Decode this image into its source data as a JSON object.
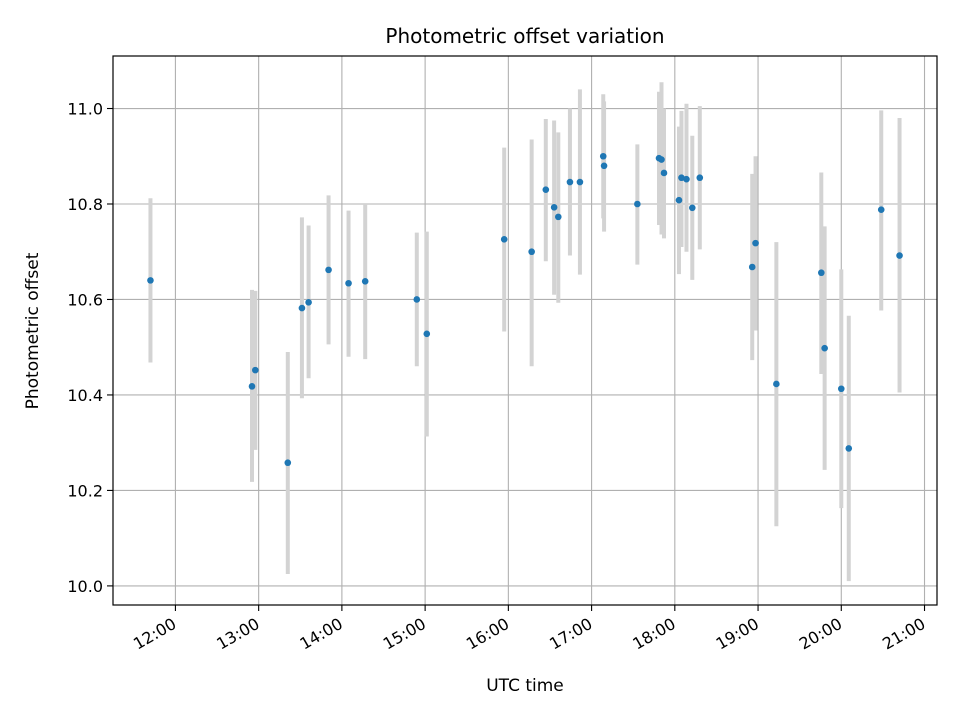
{
  "chart_data": {
    "type": "scatter",
    "title": "Photometric offset variation",
    "xlabel": "UTC time",
    "ylabel": "Photometric offset",
    "x_unit": "hour of day (UTC)",
    "xlim": [
      11.25,
      21.15
    ],
    "ylim": [
      9.96,
      11.11
    ],
    "xticks": [
      12,
      13,
      14,
      15,
      16,
      17,
      18,
      19,
      20,
      21
    ],
    "xtick_labels": [
      "12:00",
      "13:00",
      "14:00",
      "15:00",
      "16:00",
      "17:00",
      "18:00",
      "19:00",
      "20:00",
      "21:00"
    ],
    "yticks": [
      10.0,
      10.2,
      10.4,
      10.6,
      10.8,
      11.0
    ],
    "ytick_labels": [
      "10.0",
      "10.2",
      "10.4",
      "10.6",
      "10.8",
      "11.0"
    ],
    "grid": true,
    "colors": {
      "marker": "#1f77b4",
      "errorbar": "#d3d3d3",
      "grid": "#b0b0b0"
    },
    "points": [
      {
        "x": 11.7,
        "y": 10.64,
        "lo": 10.468,
        "hi": 10.812
      },
      {
        "x": 12.92,
        "y": 10.418,
        "lo": 10.218,
        "hi": 10.62
      },
      {
        "x": 12.96,
        "y": 10.452,
        "lo": 10.285,
        "hi": 10.618
      },
      {
        "x": 13.35,
        "y": 10.258,
        "lo": 10.025,
        "hi": 10.49
      },
      {
        "x": 13.52,
        "y": 10.582,
        "lo": 10.393,
        "hi": 10.772
      },
      {
        "x": 13.6,
        "y": 10.594,
        "lo": 10.435,
        "hi": 10.755
      },
      {
        "x": 13.84,
        "y": 10.662,
        "lo": 10.506,
        "hi": 10.818
      },
      {
        "x": 14.08,
        "y": 10.634,
        "lo": 10.48,
        "hi": 10.786
      },
      {
        "x": 14.28,
        "y": 10.638,
        "lo": 10.475,
        "hi": 10.8
      },
      {
        "x": 14.9,
        "y": 10.6,
        "lo": 10.46,
        "hi": 10.74
      },
      {
        "x": 15.02,
        "y": 10.528,
        "lo": 10.313,
        "hi": 10.742
      },
      {
        "x": 15.95,
        "y": 10.726,
        "lo": 10.533,
        "hi": 10.918
      },
      {
        "x": 16.28,
        "y": 10.7,
        "lo": 10.46,
        "hi": 10.935
      },
      {
        "x": 16.45,
        "y": 10.83,
        "lo": 10.68,
        "hi": 10.978
      },
      {
        "x": 16.55,
        "y": 10.793,
        "lo": 10.61,
        "hi": 10.975
      },
      {
        "x": 16.6,
        "y": 10.773,
        "lo": 10.593,
        "hi": 10.95
      },
      {
        "x": 16.74,
        "y": 10.846,
        "lo": 10.692,
        "hi": 11.0
      },
      {
        "x": 16.86,
        "y": 10.846,
        "lo": 10.652,
        "hi": 11.04
      },
      {
        "x": 17.14,
        "y": 10.9,
        "lo": 10.77,
        "hi": 11.03
      },
      {
        "x": 17.15,
        "y": 10.88,
        "lo": 10.742,
        "hi": 11.015
      },
      {
        "x": 17.55,
        "y": 10.8,
        "lo": 10.673,
        "hi": 10.925
      },
      {
        "x": 17.81,
        "y": 10.896,
        "lo": 10.756,
        "hi": 11.035
      },
      {
        "x": 17.84,
        "y": 10.893,
        "lo": 10.736,
        "hi": 11.055
      },
      {
        "x": 17.87,
        "y": 10.865,
        "lo": 10.728,
        "hi": 11.0
      },
      {
        "x": 18.05,
        "y": 10.808,
        "lo": 10.653,
        "hi": 10.962
      },
      {
        "x": 18.08,
        "y": 10.855,
        "lo": 10.71,
        "hi": 10.995
      },
      {
        "x": 18.14,
        "y": 10.852,
        "lo": 10.7,
        "hi": 11.01
      },
      {
        "x": 18.21,
        "y": 10.792,
        "lo": 10.641,
        "hi": 10.943
      },
      {
        "x": 18.3,
        "y": 10.855,
        "lo": 10.705,
        "hi": 11.005
      },
      {
        "x": 18.93,
        "y": 10.668,
        "lo": 10.473,
        "hi": 10.863
      },
      {
        "x": 18.97,
        "y": 10.718,
        "lo": 10.535,
        "hi": 10.9
      },
      {
        "x": 19.22,
        "y": 10.423,
        "lo": 10.125,
        "hi": 10.72
      },
      {
        "x": 19.76,
        "y": 10.656,
        "lo": 10.444,
        "hi": 10.866
      },
      {
        "x": 19.8,
        "y": 10.498,
        "lo": 10.243,
        "hi": 10.753
      },
      {
        "x": 20.0,
        "y": 10.413,
        "lo": 10.163,
        "hi": 10.663
      },
      {
        "x": 20.09,
        "y": 10.288,
        "lo": 10.01,
        "hi": 10.566
      },
      {
        "x": 20.48,
        "y": 10.788,
        "lo": 10.577,
        "hi": 10.996
      },
      {
        "x": 20.7,
        "y": 10.692,
        "lo": 10.405,
        "hi": 10.98
      }
    ]
  }
}
